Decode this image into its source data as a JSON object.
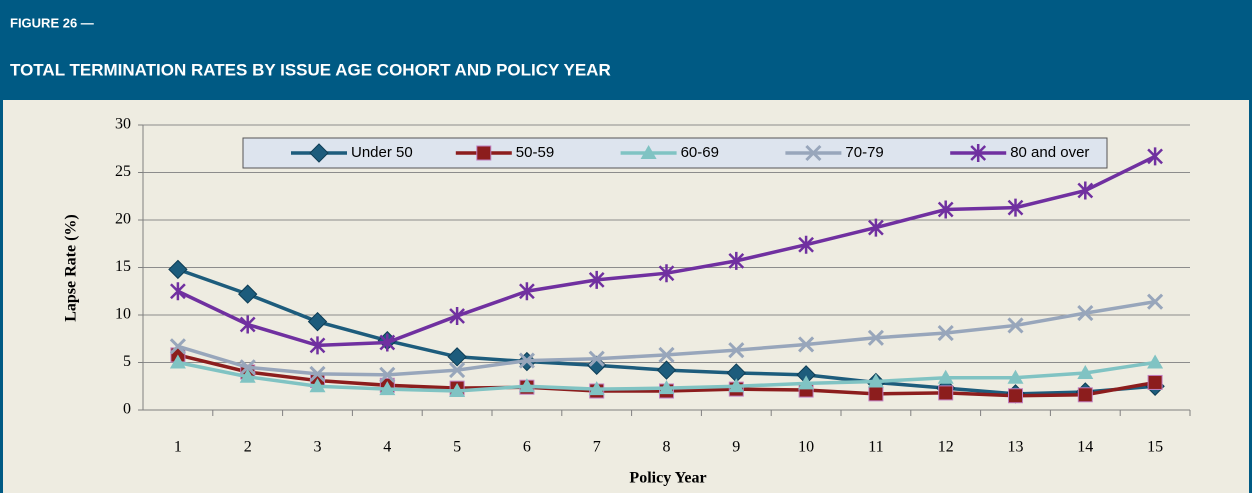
{
  "chart_data": {
    "type": "line",
    "figure_label": "FIGURE 26 —",
    "title": "TOTAL TERMINATION RATES BY ISSUE AGE COHORT AND POLICY YEAR",
    "x_label": "Policy Year",
    "y_label": "Lapse Rate (%)",
    "categories": [
      1,
      2,
      3,
      4,
      5,
      6,
      7,
      8,
      9,
      10,
      11,
      12,
      13,
      14,
      15
    ],
    "ylim": [
      0,
      30
    ],
    "yticks": [
      0,
      5,
      10,
      15,
      20,
      25,
      30
    ],
    "grid": true,
    "legend": "top",
    "series": [
      {
        "name": "Under 50",
        "color": "#1d5c7c",
        "marker": "diamond",
        "values": [
          14.8,
          12.2,
          9.3,
          7.3,
          5.6,
          5.1,
          4.7,
          4.2,
          3.9,
          3.7,
          2.9,
          2.3,
          1.7,
          1.9,
          2.5
        ]
      },
      {
        "name": "50-59",
        "color": "#8c1d1d",
        "marker": "square",
        "values": [
          5.8,
          4.0,
          3.1,
          2.6,
          2.3,
          2.4,
          2.0,
          2.0,
          2.2,
          2.1,
          1.7,
          1.8,
          1.5,
          1.6,
          2.9
        ]
      },
      {
        "name": "60-69",
        "color": "#80c3c3",
        "marker": "triangle",
        "values": [
          5.0,
          3.5,
          2.5,
          2.2,
          2.0,
          2.5,
          2.2,
          2.3,
          2.5,
          2.8,
          3.0,
          3.4,
          3.4,
          3.9,
          5.0
        ]
      },
      {
        "name": "70-79",
        "color": "#98a6bb",
        "marker": "x",
        "values": [
          6.7,
          4.5,
          3.8,
          3.7,
          4.2,
          5.2,
          5.4,
          5.8,
          6.3,
          6.9,
          7.6,
          8.1,
          8.9,
          10.2,
          11.4
        ]
      },
      {
        "name": "80 and over",
        "color": "#7030a0",
        "marker": "star",
        "values": [
          12.5,
          9.0,
          6.8,
          7.1,
          9.9,
          12.5,
          13.7,
          14.4,
          15.7,
          17.4,
          19.2,
          21.1,
          21.3,
          23.1,
          26.7
        ]
      }
    ]
  }
}
